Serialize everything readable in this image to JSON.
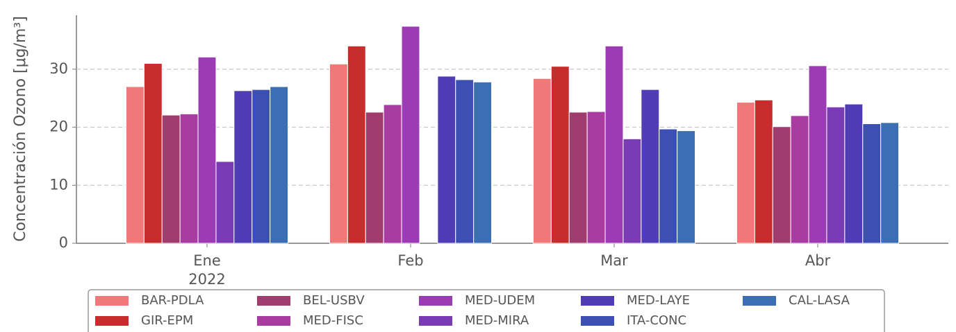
{
  "chart_data": {
    "type": "bar",
    "ylabel": "Concentración Ozono [μg/m³]",
    "categories": [
      "Ene",
      "Feb",
      "Mar",
      "Abr"
    ],
    "category_sublabel": "2022",
    "series": [
      {
        "name": "BAR-PDLA",
        "color": "#f07878",
        "values": [
          27.0,
          30.9,
          28.4,
          24.3
        ]
      },
      {
        "name": "GIR-EPM",
        "color": "#c82d2d",
        "values": [
          31.0,
          34.0,
          30.5,
          24.7
        ]
      },
      {
        "name": "BEL-USBV",
        "color": "#a03c6e",
        "values": [
          22.1,
          22.6,
          22.6,
          20.1
        ]
      },
      {
        "name": "MED-FISC",
        "color": "#a83ca0",
        "values": [
          22.3,
          23.9,
          22.7,
          22.0
        ]
      },
      {
        "name": "MED-UDEM",
        "color": "#9b3cb4",
        "values": [
          32.1,
          37.4,
          34.0,
          30.6
        ]
      },
      {
        "name": "MED-MIRA",
        "color": "#7a3cb4",
        "values": [
          14.1,
          null,
          18.0,
          23.5
        ]
      },
      {
        "name": "MED-LAYE",
        "color": "#503cb4",
        "values": [
          26.3,
          28.8,
          26.5,
          24.0
        ]
      },
      {
        "name": "ITA-CONC",
        "color": "#3c50b4",
        "values": [
          26.5,
          28.2,
          19.7,
          20.6
        ]
      },
      {
        "name": "CAL-LASA",
        "color": "#3c6eb4",
        "values": [
          27.0,
          27.8,
          19.4,
          20.8
        ]
      }
    ],
    "ylim": [
      0,
      39.3
    ],
    "yticks": [
      0,
      10,
      20,
      30
    ],
    "grid": true,
    "legend": "bottom"
  }
}
